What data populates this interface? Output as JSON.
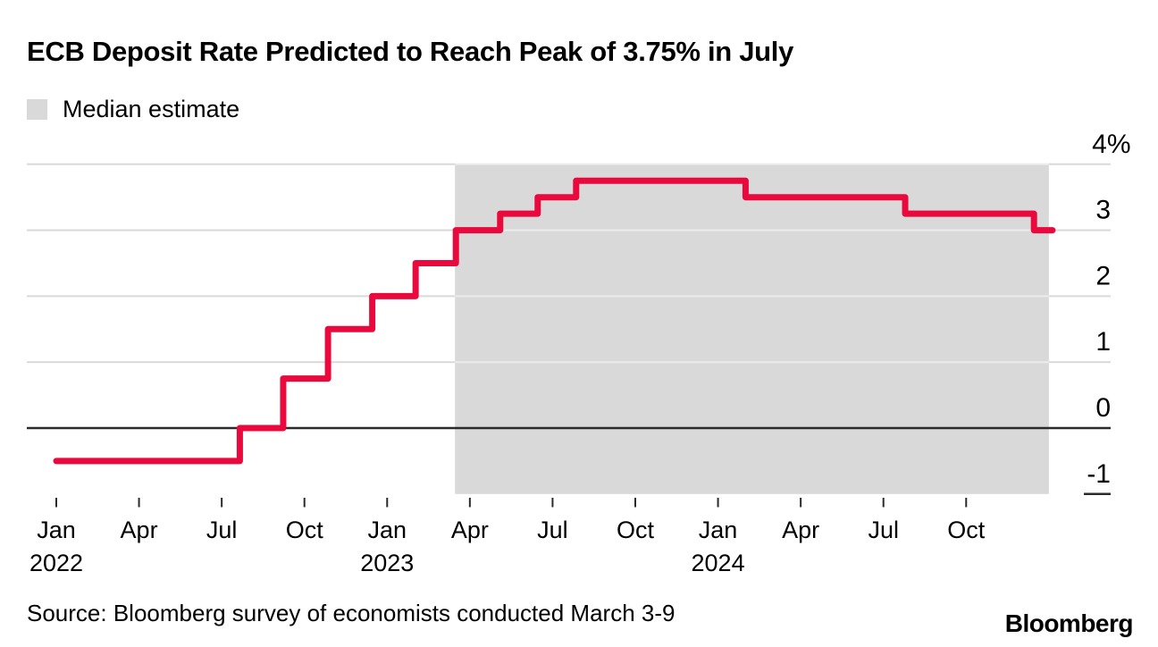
{
  "header": {
    "title": "ECB Deposit Rate Predicted to Reach Peak of 3.75% in July"
  },
  "legend": {
    "label": "Median estimate"
  },
  "footer": {
    "source": "Source: Bloomberg survey of economists conducted March 3-9",
    "brand": "Bloomberg"
  },
  "chart_data": {
    "type": "line",
    "line_style": "step-after",
    "title": "ECB Deposit Rate Predicted to Reach Peak of 3.75% in July",
    "unit": "percent",
    "ylim": [
      -1,
      4
    ],
    "grid": true,
    "legend_position": "top-left",
    "line_color": "#e9093d",
    "axis_color": "#2b2b2b",
    "grid_color": "#d9d9d9",
    "series": [
      {
        "name": "ECB deposit rate (actual and survey median estimate)",
        "steps": [
          {
            "date": "2022-01-01",
            "rate": -0.5
          },
          {
            "date": "2022-07-21",
            "rate": 0.0
          },
          {
            "date": "2022-09-08",
            "rate": 0.75
          },
          {
            "date": "2022-10-27",
            "rate": 1.5
          },
          {
            "date": "2022-12-15",
            "rate": 2.0
          },
          {
            "date": "2023-02-02",
            "rate": 2.5
          },
          {
            "date": "2023-03-16",
            "rate": 3.0
          },
          {
            "date": "2023-05-04",
            "rate": 3.25
          },
          {
            "date": "2023-06-15",
            "rate": 3.5
          },
          {
            "date": "2023-07-27",
            "rate": 3.75
          },
          {
            "date": "2024-02-01",
            "rate": 3.5
          },
          {
            "date": "2024-07-25",
            "rate": 3.25
          },
          {
            "date": "2024-12-15",
            "rate": 3.0
          }
        ],
        "end_date": "2025-01-05"
      }
    ],
    "shaded_region": {
      "label": "Median estimate",
      "start": "2023-03-15",
      "end": "2025-01-01",
      "color": "#d9d9d9"
    },
    "x_ticks": [
      {
        "label": "Jan",
        "year": "2022",
        "date": "2022-01-01"
      },
      {
        "label": "Apr",
        "date": "2022-04-01"
      },
      {
        "label": "Jul",
        "date": "2022-07-01"
      },
      {
        "label": "Oct",
        "date": "2022-10-01"
      },
      {
        "label": "Jan",
        "year": "2023",
        "date": "2023-01-01"
      },
      {
        "label": "Apr",
        "date": "2023-04-01"
      },
      {
        "label": "Jul",
        "date": "2023-07-01"
      },
      {
        "label": "Oct",
        "date": "2023-10-01"
      },
      {
        "label": "Jan",
        "year": "2024",
        "date": "2024-01-01"
      },
      {
        "label": "Apr",
        "date": "2024-04-01"
      },
      {
        "label": "Jul",
        "date": "2024-07-01"
      },
      {
        "label": "Oct",
        "date": "2024-10-01"
      }
    ],
    "y_ticks": [
      {
        "label": "4%",
        "value": 4
      },
      {
        "label": "3",
        "value": 3
      },
      {
        "label": "2",
        "value": 2
      },
      {
        "label": "1",
        "value": 1
      },
      {
        "label": "0",
        "value": 0
      },
      {
        "label": "-1",
        "value": -1
      }
    ]
  }
}
